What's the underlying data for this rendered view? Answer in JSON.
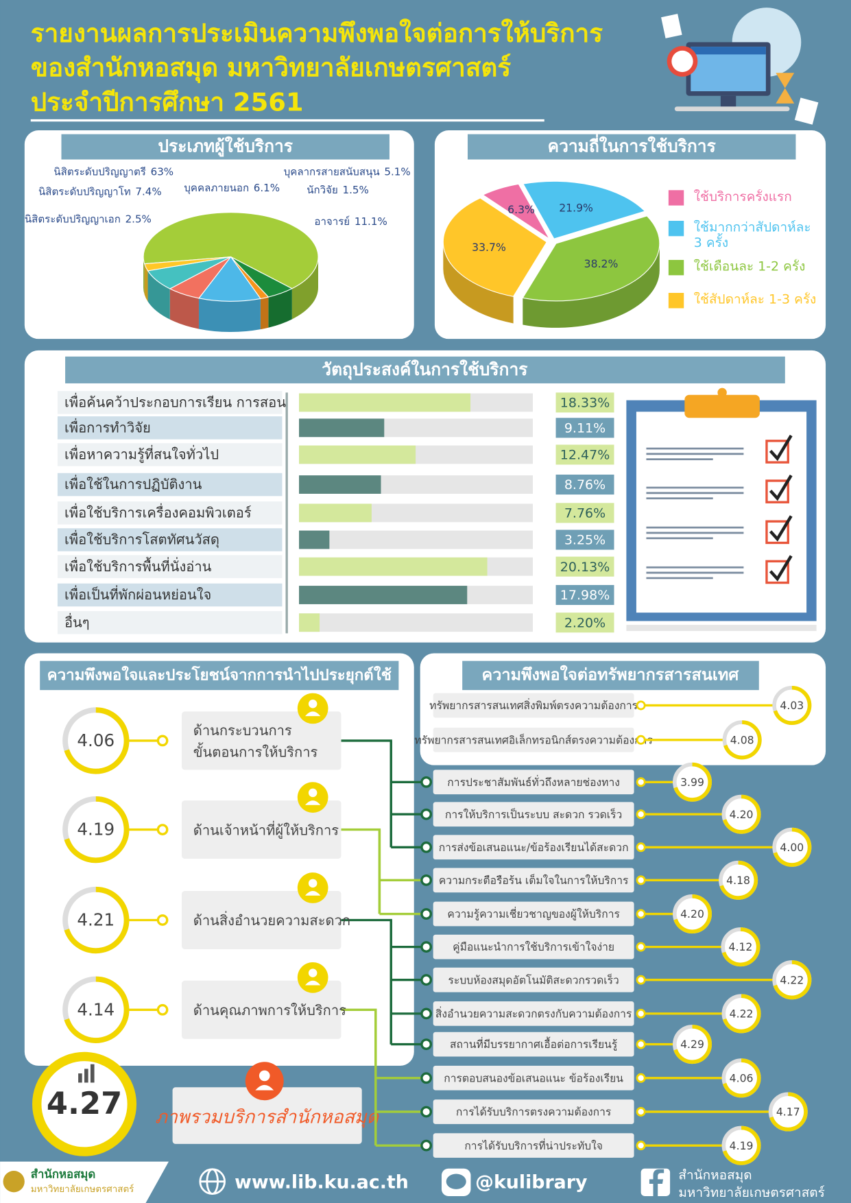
{
  "header": {
    "title": [
      "รายงานผลการประเมินความพึงพอใจต่อการให้บริการ",
      "ของสำนักหอสมุด มหาวิทยาลัยเกษตรศาสตร์",
      "ประจำปีการศึกษา 2561"
    ]
  },
  "chart_data": [
    {
      "type": "pie",
      "title": "ประเภทผู้ใช้บริการ",
      "categories": [
        "นิสิตระดับปริญญาตรี",
        "บุคลากรสายสนับสนุน",
        "นักวิจัย",
        "อาจารย์",
        "บุคคลภายนอก",
        "นิสิตระดับปริญญาโท",
        "นิสิตระดับปริญญาเอก"
      ],
      "values": [
        63,
        5.1,
        1.5,
        11.1,
        6.1,
        7.4,
        2.5
      ],
      "value_labels": [
        "63%",
        "5.1%",
        "1.5%",
        "11.1%",
        "6.1%",
        "7.4%",
        "2.5%"
      ],
      "colors": [
        "#a4cd39",
        "#1c8c3c",
        "#f7941d",
        "#4db8e8",
        "#f2715f",
        "#45c1c0",
        "#ffc727"
      ]
    },
    {
      "type": "pie",
      "title": "ความถี่ในการใช้บริการ",
      "categories": [
        "ใช้บริการครั้งแรก",
        "ใช้มากกว่าสัปดาห์ละ 3 ครั้ง",
        "ใช้เดือนละ 1-2 ครั้ง",
        "ใช้สัปดาห์ละ 1-3 ครั้ง"
      ],
      "values": [
        6.3,
        21.9,
        38.2,
        33.7
      ],
      "value_labels": [
        "6.3%",
        "21.9%",
        "38.2%",
        "33.7%"
      ],
      "colors": [
        "#ef6fa4",
        "#4ec3ef",
        "#8dc63f",
        "#ffc629"
      ]
    },
    {
      "type": "hbar",
      "title": "วัตถุประสงค์ในการใช้บริการ",
      "categories": [
        "เพื่อค้นคว้าประกอบการเรียน การสอน",
        "เพื่อการทำวิจัย",
        "เพื่อหาความรู้ที่สนใจทั่วไป",
        "เพื่อใช้ในการปฏิบัติงาน",
        "เพื่อใช้บริการเครื่องคอมพิวเตอร์",
        "เพื่อใช้บริการโสตทัศนวัสดุ",
        "เพื่อใช้บริการพื้นที่นั่งอ่าน",
        "เพื่อเป็นที่พักผ่อนหย่อนใจ",
        "อื่นๆ"
      ],
      "values": [
        18.33,
        9.11,
        12.47,
        8.76,
        7.76,
        3.25,
        20.13,
        17.98,
        2.2
      ],
      "value_labels": [
        "18.33%",
        "9.11%",
        "12.47%",
        "8.76%",
        "7.76%",
        "3.25%",
        "20.13%",
        "17.98%",
        "2.20%"
      ],
      "colors": [
        "#d4e89c",
        "#5c8780",
        "#d4e89c",
        "#5c8780",
        "#d4e89c",
        "#5c8780",
        "#d4e89c",
        "#5c8780",
        "#d4e89c"
      ],
      "xlim": [
        0,
        25
      ]
    }
  ],
  "satisfaction": {
    "title": "ความพึงพอใจและประโยชน์จากการนำไปประยุกต์ใช้",
    "aspects": [
      {
        "label": [
          "ด้านกระบวนการ",
          "ขั้นตอนการให้บริการ"
        ],
        "score": "4.06"
      },
      {
        "label": [
          "ด้านเจ้าหน้าที่ผู้ให้บริการ"
        ],
        "score": "4.19"
      },
      {
        "label": [
          "ด้านสิ่งอำนวยความสะดวก"
        ],
        "score": "4.21"
      },
      {
        "label": [
          "ด้านคุณภาพการให้บริการ"
        ],
        "score": "4.14"
      }
    ],
    "overall": {
      "score": "4.27",
      "label": "ภาพรวมบริการสำนักหอสมุด"
    }
  },
  "resources": {
    "title": "ความพึงพอใจต่อทรัพยากรสารสนเทศ",
    "items": [
      {
        "label": "ทรัพยากรสารสนเทศสิ่งพิมพ์ตรงความต้องการ",
        "score": "4.03"
      },
      {
        "label": "ทรัพยากรสารสนเทศอิเล็กทรอนิกส์ตรงความต้องการ",
        "score": "4.08"
      }
    ]
  },
  "details": [
    {
      "label": "การประชาสัมพันธ์ทั่วถึงหลายช่องทาง",
      "score": "3.99"
    },
    {
      "label": "การให้บริการเป็นระบบ สะดวก รวดเร็ว",
      "score": "4.20"
    },
    {
      "label": "การส่งข้อเสนอแนะ/ข้อร้องเรียนได้สะดวก",
      "score": "4.00"
    },
    {
      "label": "ความกระตือรือร้น เต็มใจในการให้บริการ",
      "score": "4.18"
    },
    {
      "label": "ความรู้ความเชี่ยวชาญของผู้ให้บริการ",
      "score": "4.20"
    },
    {
      "label": "คู่มือแนะนำการใช้บริการเข้าใจง่าย",
      "score": "4.12"
    },
    {
      "label": "ระบบห้องสมุดอัตโนมัติสะดวกรวดเร็ว",
      "score": "4.22"
    },
    {
      "label": "สิ่งอำนวยความสะดวกตรงกับความต้องการ",
      "score": "4.22"
    },
    {
      "label": "สถานที่มีบรรยากาศเอื้อต่อการเรียนรู้",
      "score": "4.29"
    },
    {
      "label": "การตอบสนองข้อเสนอแนะ ข้อร้องเรียน",
      "score": "4.06"
    },
    {
      "label": "การได้รับบริการตรงความต้องการ",
      "score": "4.17"
    },
    {
      "label": "การได้รับบริการที่น่าประทับใจ",
      "score": "4.19"
    }
  ],
  "footer": {
    "logo": [
      "สำนักหอสมุด",
      "มหาวิทยาลัยเกษตรศาสตร์"
    ],
    "website": "www.lib.ku.ac.th",
    "line": "@kulibrary",
    "facebook": [
      "สำนักหอสมุด",
      "มหาวิทยาลัยเกษตรศาสตร์"
    ]
  }
}
